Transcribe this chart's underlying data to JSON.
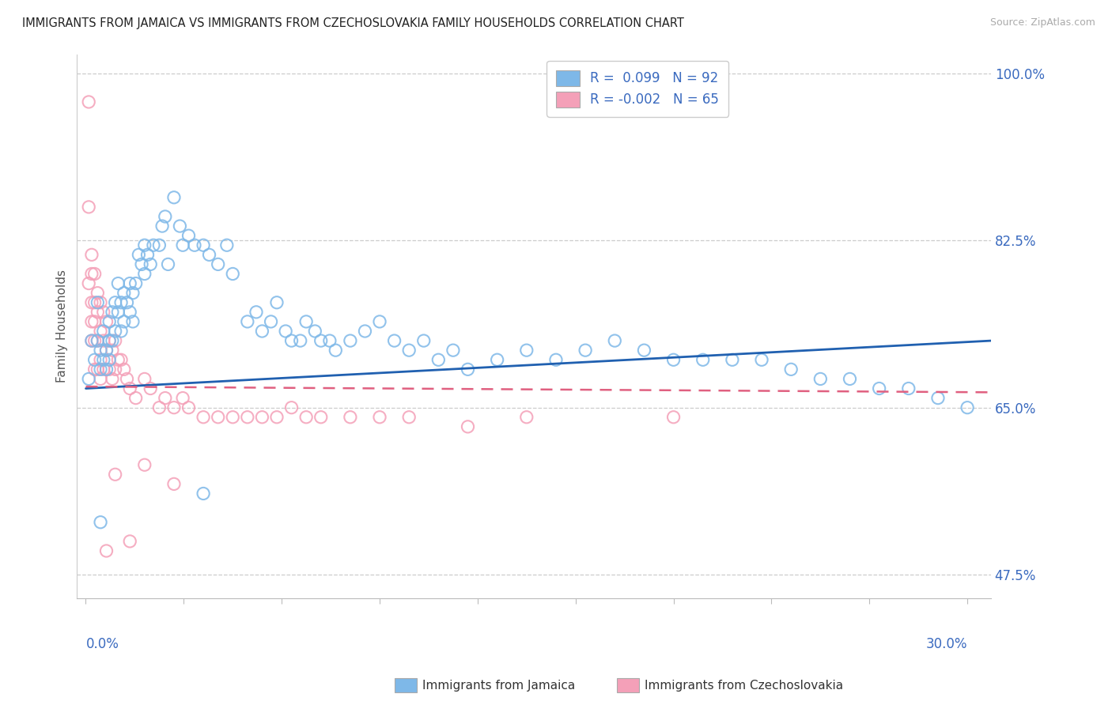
{
  "title": "IMMIGRANTS FROM JAMAICA VS IMMIGRANTS FROM CZECHOSLOVAKIA FAMILY HOUSEHOLDS CORRELATION CHART",
  "source": "Source: ZipAtlas.com",
  "ylabel": "Family Households",
  "ymin": 0.45,
  "ymax": 1.02,
  "xmin": -0.003,
  "xmax": 0.308,
  "ytick_labels_shown": [
    "100.0%",
    "82.5%",
    "65.0%",
    "47.5%"
  ],
  "ytick_labels_positions": [
    1.0,
    0.825,
    0.65,
    0.475
  ],
  "jamaica_color": "#7eb8e8",
  "czechoslovakia_color": "#f4a0b8",
  "jamaica_line_color": "#2060b0",
  "czechoslovakia_line_color": "#e06080",
  "text_color": "#3a6abf",
  "R_jamaica": 0.099,
  "N_jamaica": 92,
  "R_czechoslovakia": -0.002,
  "N_czechoslovakia": 65,
  "jamaica_points_x": [
    0.001,
    0.002,
    0.003,
    0.004,
    0.004,
    0.005,
    0.005,
    0.006,
    0.006,
    0.007,
    0.007,
    0.008,
    0.008,
    0.008,
    0.009,
    0.009,
    0.01,
    0.01,
    0.011,
    0.011,
    0.012,
    0.012,
    0.013,
    0.013,
    0.014,
    0.015,
    0.015,
    0.016,
    0.016,
    0.017,
    0.018,
    0.019,
    0.02,
    0.02,
    0.021,
    0.022,
    0.023,
    0.025,
    0.026,
    0.027,
    0.028,
    0.03,
    0.032,
    0.033,
    0.035,
    0.037,
    0.04,
    0.042,
    0.045,
    0.048,
    0.05,
    0.055,
    0.058,
    0.06,
    0.063,
    0.065,
    0.068,
    0.07,
    0.073,
    0.075,
    0.078,
    0.08,
    0.083,
    0.085,
    0.09,
    0.095,
    0.1,
    0.105,
    0.11,
    0.115,
    0.12,
    0.125,
    0.13,
    0.14,
    0.15,
    0.16,
    0.17,
    0.18,
    0.19,
    0.2,
    0.21,
    0.22,
    0.23,
    0.24,
    0.25,
    0.26,
    0.27,
    0.28,
    0.29,
    0.3,
    0.005,
    0.04
  ],
  "jamaica_points_y": [
    0.68,
    0.72,
    0.7,
    0.76,
    0.72,
    0.69,
    0.71,
    0.7,
    0.73,
    0.71,
    0.69,
    0.74,
    0.72,
    0.7,
    0.75,
    0.72,
    0.76,
    0.73,
    0.78,
    0.75,
    0.76,
    0.73,
    0.77,
    0.74,
    0.76,
    0.78,
    0.75,
    0.77,
    0.74,
    0.78,
    0.81,
    0.8,
    0.82,
    0.79,
    0.81,
    0.8,
    0.82,
    0.82,
    0.84,
    0.85,
    0.8,
    0.87,
    0.84,
    0.82,
    0.83,
    0.82,
    0.82,
    0.81,
    0.8,
    0.82,
    0.79,
    0.74,
    0.75,
    0.73,
    0.74,
    0.76,
    0.73,
    0.72,
    0.72,
    0.74,
    0.73,
    0.72,
    0.72,
    0.71,
    0.72,
    0.73,
    0.74,
    0.72,
    0.71,
    0.72,
    0.7,
    0.71,
    0.69,
    0.7,
    0.71,
    0.7,
    0.71,
    0.72,
    0.71,
    0.7,
    0.7,
    0.7,
    0.7,
    0.69,
    0.68,
    0.68,
    0.67,
    0.67,
    0.66,
    0.65,
    0.53,
    0.56
  ],
  "czechoslovakia_points_x": [
    0.001,
    0.001,
    0.001,
    0.002,
    0.002,
    0.002,
    0.002,
    0.002,
    0.003,
    0.003,
    0.003,
    0.003,
    0.003,
    0.004,
    0.004,
    0.004,
    0.004,
    0.005,
    0.005,
    0.005,
    0.005,
    0.006,
    0.006,
    0.006,
    0.007,
    0.007,
    0.008,
    0.008,
    0.009,
    0.009,
    0.01,
    0.01,
    0.011,
    0.012,
    0.013,
    0.014,
    0.015,
    0.017,
    0.02,
    0.022,
    0.025,
    0.027,
    0.03,
    0.033,
    0.035,
    0.04,
    0.045,
    0.05,
    0.055,
    0.06,
    0.065,
    0.07,
    0.075,
    0.08,
    0.09,
    0.1,
    0.11,
    0.13,
    0.15,
    0.2,
    0.01,
    0.02,
    0.03,
    0.007,
    0.015
  ],
  "czechoslovakia_points_y": [
    0.97,
    0.86,
    0.78,
    0.81,
    0.79,
    0.76,
    0.74,
    0.72,
    0.79,
    0.76,
    0.74,
    0.72,
    0.69,
    0.77,
    0.75,
    0.72,
    0.69,
    0.76,
    0.73,
    0.7,
    0.68,
    0.75,
    0.72,
    0.69,
    0.74,
    0.71,
    0.72,
    0.69,
    0.71,
    0.68,
    0.72,
    0.69,
    0.7,
    0.7,
    0.69,
    0.68,
    0.67,
    0.66,
    0.68,
    0.67,
    0.65,
    0.66,
    0.65,
    0.66,
    0.65,
    0.64,
    0.64,
    0.64,
    0.64,
    0.64,
    0.64,
    0.65,
    0.64,
    0.64,
    0.64,
    0.64,
    0.64,
    0.63,
    0.64,
    0.64,
    0.58,
    0.59,
    0.57,
    0.5,
    0.51
  ],
  "jamaica_trend": [
    0.0,
    0.308,
    0.67,
    0.72
  ],
  "czechoslovakia_trend": [
    0.0,
    0.308,
    0.672,
    0.666
  ]
}
